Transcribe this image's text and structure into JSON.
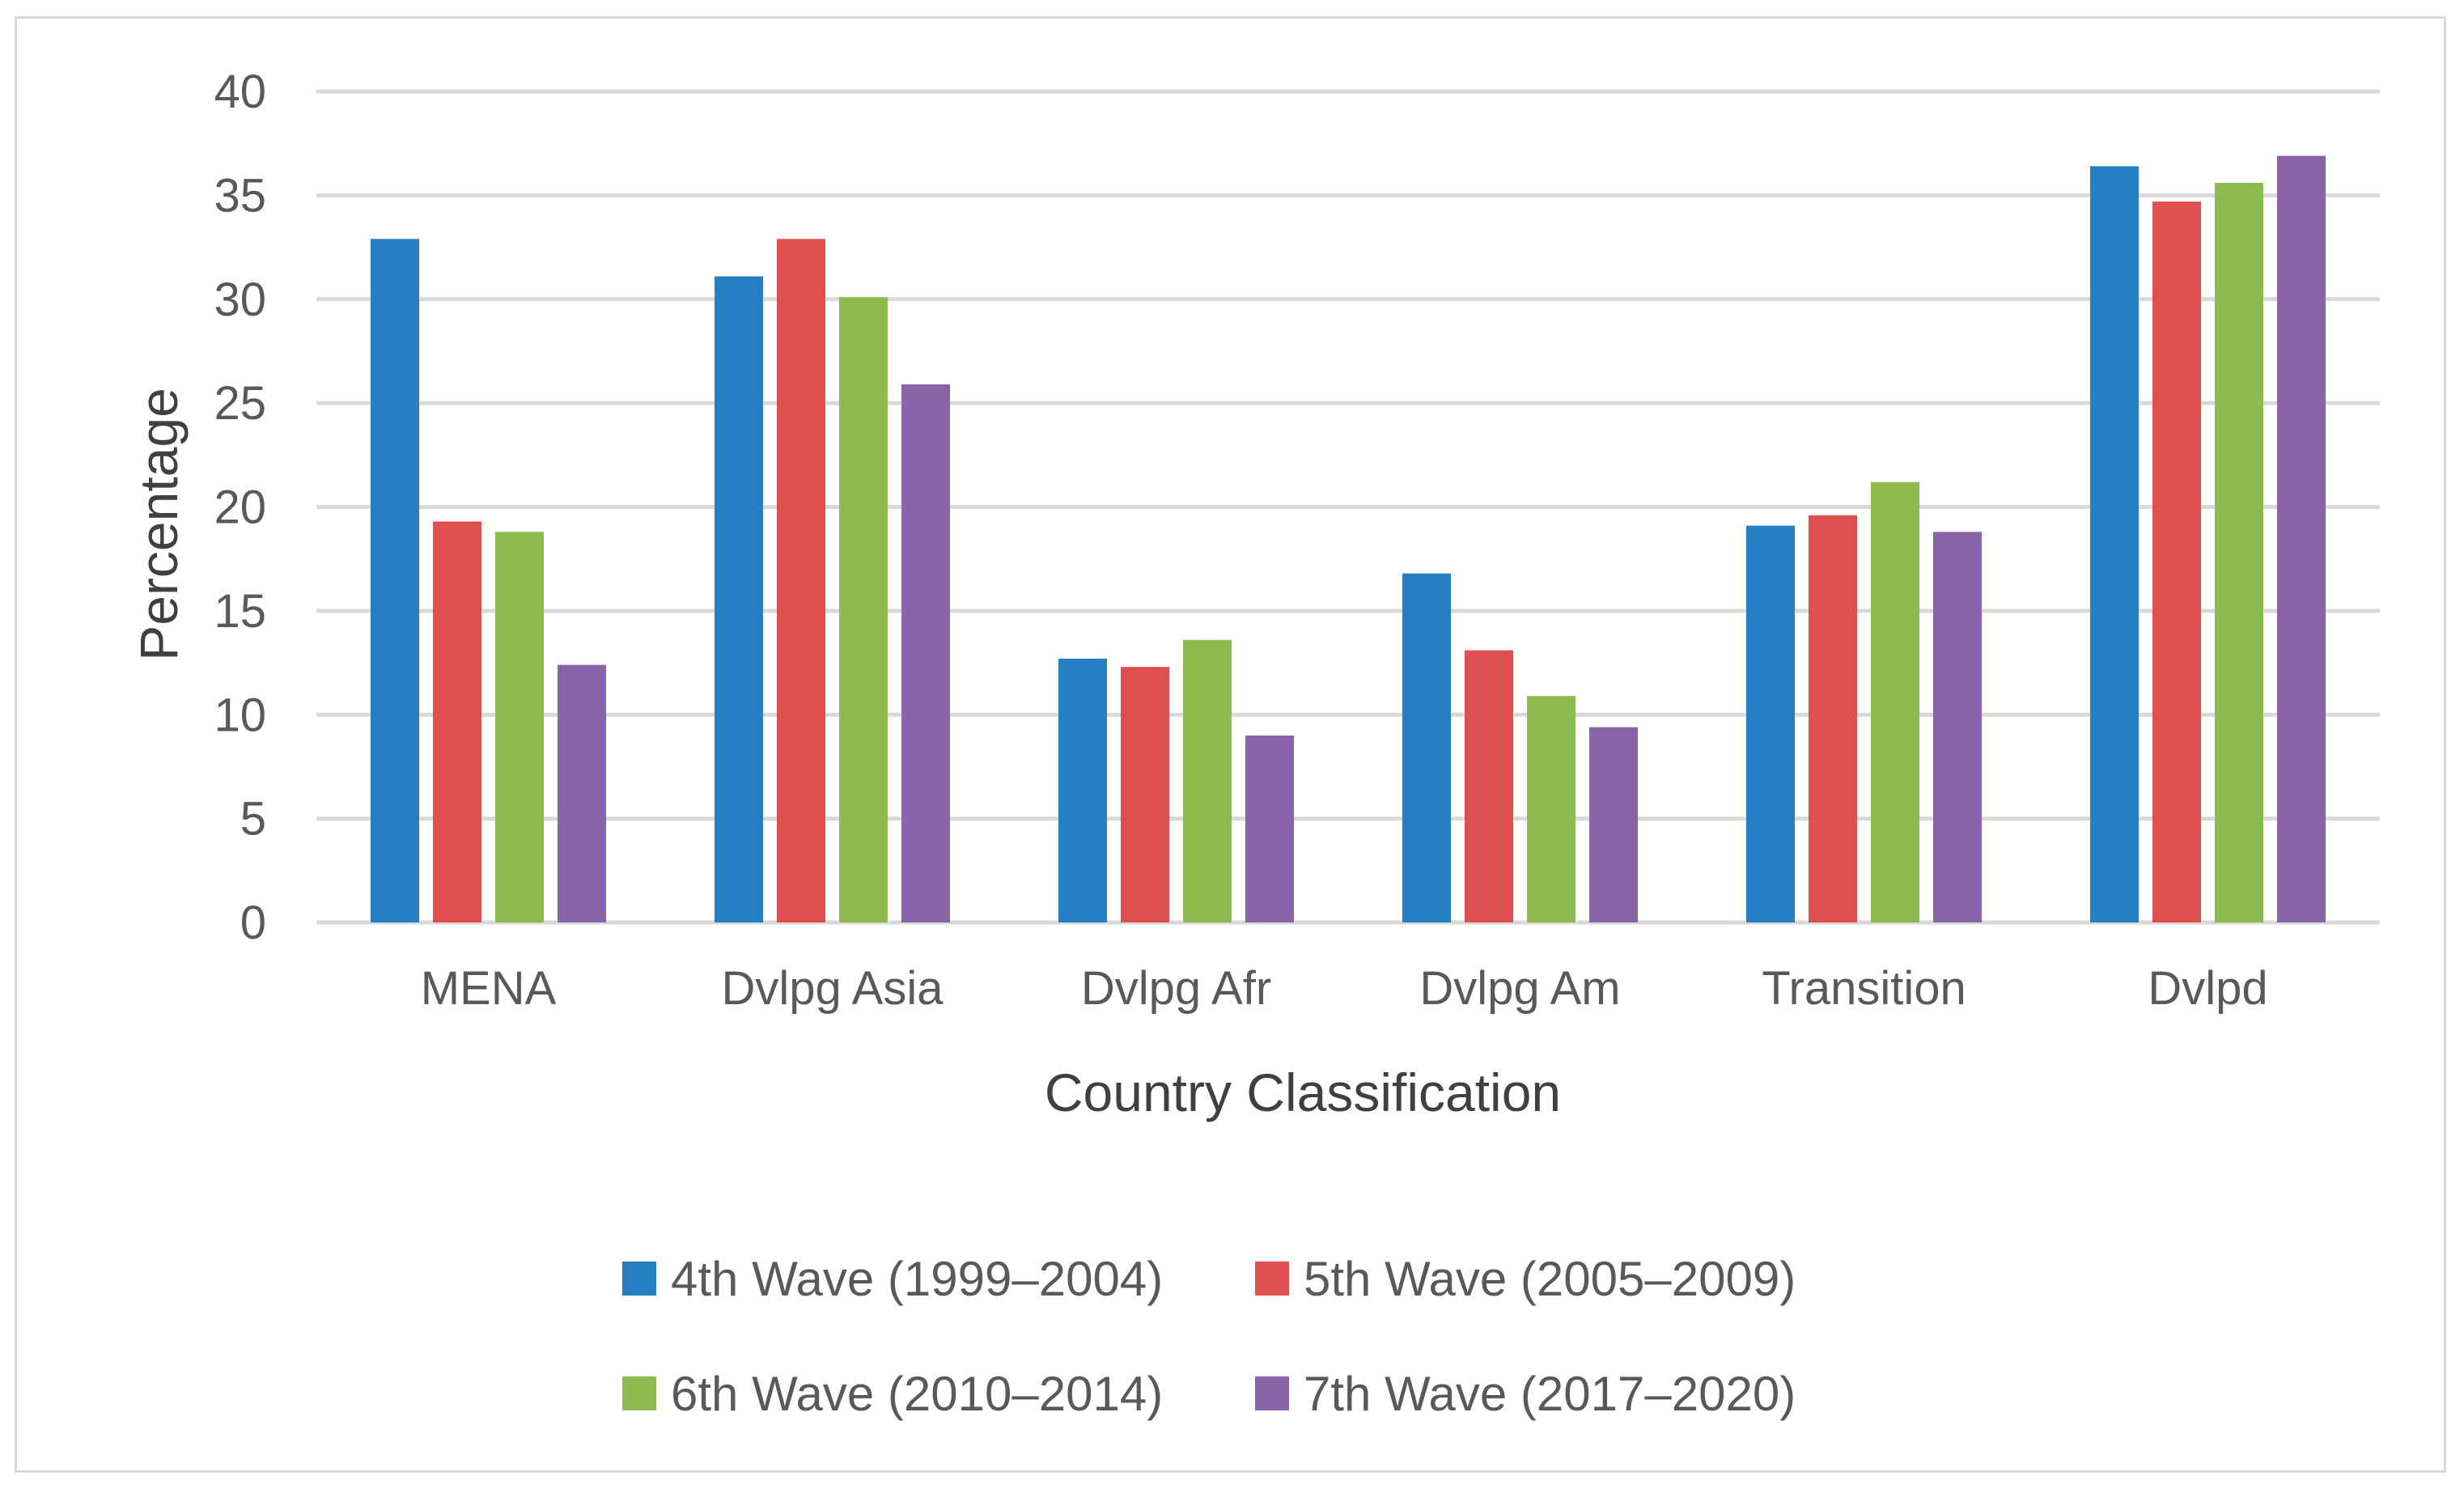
{
  "chart_data": {
    "type": "bar",
    "title": "",
    "xlabel": "Country Classification",
    "ylabel": "Percentage",
    "ylim": [
      0,
      40
    ],
    "yticks": [
      0,
      5,
      10,
      15,
      20,
      25,
      30,
      35,
      40
    ],
    "grid": true,
    "legend_position": "bottom",
    "categories": [
      "MENA",
      "Dvlpg Asia",
      "Dvlpg Afr",
      "Dvlpg Am",
      "Transition",
      "Dvlpd"
    ],
    "series": [
      {
        "name": "4th Wave (1999–2004)",
        "color": "#2580c3",
        "values": [
          32.9,
          31.1,
          12.7,
          16.8,
          19.1,
          36.4
        ]
      },
      {
        "name": "5th Wave (2005–2009)",
        "color": "#df4f4f",
        "values": [
          19.3,
          32.9,
          12.3,
          13.1,
          19.6,
          34.7
        ]
      },
      {
        "name": "6th Wave (2010–2014)",
        "color": "#8dbb4f",
        "values": [
          18.8,
          30.1,
          13.6,
          10.9,
          21.2,
          35.6
        ]
      },
      {
        "name": "7th Wave (2017–2020)",
        "color": "#8a64a8",
        "values": [
          12.4,
          25.9,
          9.0,
          9.4,
          18.8,
          36.9
        ]
      }
    ]
  }
}
